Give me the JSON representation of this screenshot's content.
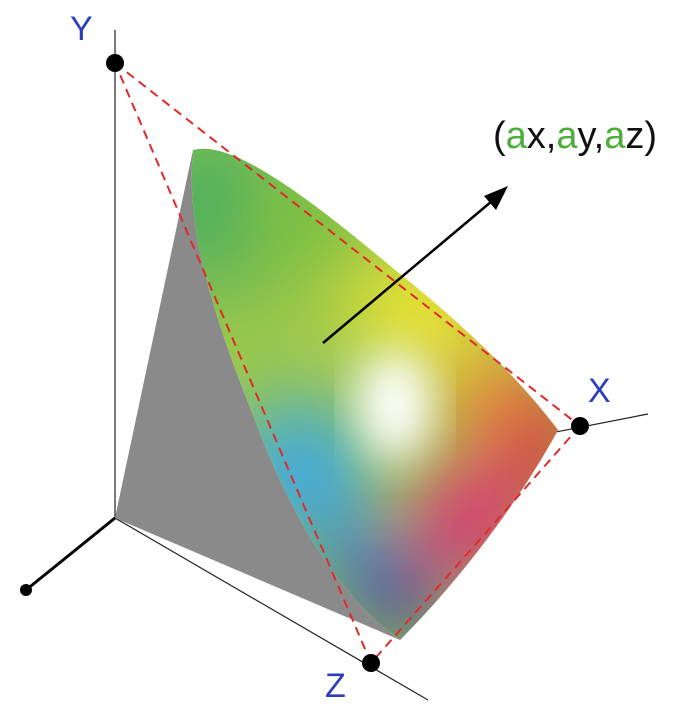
{
  "axes": {
    "x_label": "X",
    "y_label": "Y",
    "z_label": "Z"
  },
  "vector_label": {
    "open": "(",
    "coef1": "a",
    "var1": "x,",
    "coef2": "a",
    "var2": "y,",
    "coef3": "a",
    "var3": "z)"
  },
  "colors": {
    "axis_label": "#2b3fb8",
    "coefficient": "#4caf3a",
    "dashed_lines": "#e02a2a",
    "gray_face": "#8a8a8a"
  }
}
